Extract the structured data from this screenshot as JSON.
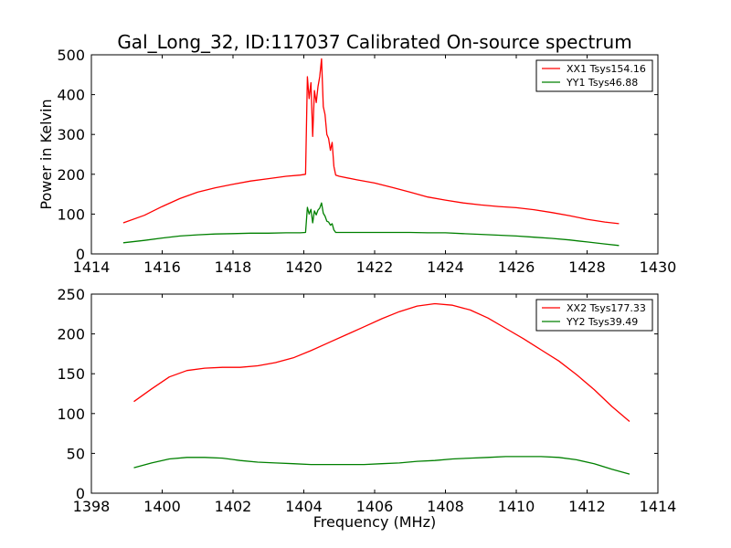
{
  "title": "Gal_Long_32, ID:117037 Calibrated On-source spectrum",
  "chart_data": [
    {
      "type": "line",
      "xlim": [
        1414,
        1430
      ],
      "ylim": [
        0,
        500
      ],
      "xticks": [
        1414,
        1416,
        1418,
        1420,
        1422,
        1424,
        1426,
        1428,
        1430
      ],
      "yticks": [
        0,
        100,
        200,
        300,
        400,
        500
      ],
      "xlabel": "",
      "ylabel": "Power in Kelvin",
      "grid": false,
      "legend_position": "top-right",
      "series": [
        {
          "name": "XX1 Tsys154.16",
          "color": "#ff0000",
          "x": [
            1414.9,
            1415.5,
            1416.0,
            1416.5,
            1417.0,
            1417.5,
            1418.0,
            1418.5,
            1419.0,
            1419.5,
            1419.9,
            1420.05,
            1420.1,
            1420.15,
            1420.2,
            1420.25,
            1420.3,
            1420.35,
            1420.4,
            1420.45,
            1420.5,
            1420.55,
            1420.6,
            1420.65,
            1420.7,
            1420.75,
            1420.8,
            1420.85,
            1420.9,
            1421.0,
            1421.5,
            1422.0,
            1422.5,
            1423.0,
            1423.5,
            1424.0,
            1424.5,
            1425.0,
            1425.5,
            1426.0,
            1426.5,
            1427.0,
            1427.5,
            1428.0,
            1428.5,
            1428.9
          ],
          "y": [
            78,
            97,
            119,
            139,
            155,
            166,
            175,
            183,
            189,
            195,
            198,
            200,
            445,
            390,
            430,
            295,
            410,
            380,
            420,
            445,
            490,
            370,
            350,
            300,
            290,
            260,
            280,
            220,
            198,
            195,
            186,
            178,
            167,
            155,
            143,
            135,
            128,
            123,
            119,
            116,
            111,
            104,
            96,
            87,
            80,
            76
          ]
        },
        {
          "name": "YY1 Tsys46.88",
          "color": "#008000",
          "x": [
            1414.9,
            1415.5,
            1416.0,
            1416.5,
            1417.0,
            1417.5,
            1418.0,
            1418.5,
            1419.0,
            1419.5,
            1419.9,
            1420.05,
            1420.1,
            1420.15,
            1420.2,
            1420.25,
            1420.3,
            1420.35,
            1420.4,
            1420.45,
            1420.5,
            1420.55,
            1420.6,
            1420.65,
            1420.7,
            1420.75,
            1420.8,
            1420.85,
            1420.9,
            1421.0,
            1421.5,
            1422.0,
            1422.5,
            1423.0,
            1423.5,
            1424.0,
            1424.5,
            1425.0,
            1425.5,
            1426.0,
            1426.5,
            1427.0,
            1427.5,
            1428.0,
            1428.5,
            1428.9
          ],
          "y": [
            28,
            34,
            40,
            45,
            48,
            50,
            51,
            52,
            52,
            53,
            53,
            54,
            117,
            100,
            112,
            78,
            108,
            98,
            110,
            115,
            128,
            102,
            95,
            82,
            80,
            72,
            76,
            60,
            54,
            54,
            54,
            54,
            54,
            54,
            53,
            53,
            51,
            49,
            47,
            45,
            42,
            39,
            35,
            30,
            25,
            21
          ]
        }
      ]
    },
    {
      "type": "line",
      "xlim": [
        1398,
        1414
      ],
      "ylim": [
        0,
        250
      ],
      "xticks": [
        1398,
        1400,
        1402,
        1404,
        1406,
        1408,
        1410,
        1412,
        1414
      ],
      "yticks": [
        0,
        50,
        100,
        150,
        200,
        250
      ],
      "xlabel": "Frequency (MHz)",
      "ylabel": "",
      "grid": false,
      "legend_position": "top-right",
      "series": [
        {
          "name": "XX2 Tsys177.33",
          "color": "#ff0000",
          "x": [
            1399.2,
            1399.7,
            1400.2,
            1400.7,
            1401.2,
            1401.7,
            1402.2,
            1402.7,
            1403.2,
            1403.7,
            1404.2,
            1404.7,
            1405.2,
            1405.7,
            1406.2,
            1406.7,
            1407.2,
            1407.7,
            1408.2,
            1408.7,
            1409.2,
            1409.7,
            1410.2,
            1410.7,
            1411.2,
            1411.7,
            1412.2,
            1412.7,
            1413.2
          ],
          "y": [
            115,
            131,
            146,
            154,
            157,
            158,
            158,
            160,
            164,
            170,
            179,
            189,
            199,
            209,
            219,
            228,
            235,
            238,
            236,
            230,
            220,
            207,
            194,
            180,
            166,
            149,
            130,
            109,
            90
          ]
        },
        {
          "name": "YY2 Tsys39.49",
          "color": "#008000",
          "x": [
            1399.2,
            1399.7,
            1400.2,
            1400.7,
            1401.2,
            1401.7,
            1402.2,
            1402.7,
            1403.2,
            1403.7,
            1404.2,
            1404.7,
            1405.2,
            1405.7,
            1406.2,
            1406.7,
            1407.2,
            1407.7,
            1408.2,
            1408.7,
            1409.2,
            1409.7,
            1410.2,
            1410.7,
            1411.2,
            1411.7,
            1412.2,
            1412.7,
            1413.2
          ],
          "y": [
            32,
            38,
            43,
            45,
            45,
            44,
            41,
            39,
            38,
            37,
            36,
            36,
            36,
            36,
            37,
            38,
            40,
            41,
            43,
            44,
            45,
            46,
            46,
            46,
            45,
            42,
            37,
            30,
            24
          ]
        }
      ]
    }
  ]
}
